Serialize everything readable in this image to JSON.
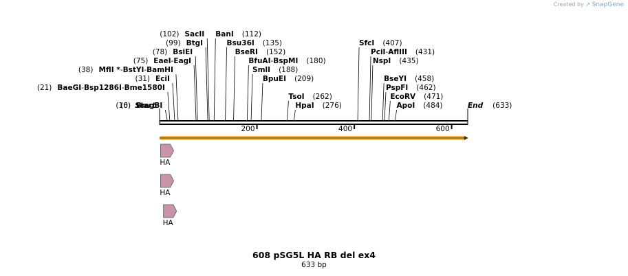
{
  "credit": {
    "prefix": "Created by",
    "brand": "SnapGene"
  },
  "sequence": {
    "name": "608 pSG5L HA RB del ex4",
    "length_label": "633 bp",
    "length": 633
  },
  "ends": {
    "start_label": "Start",
    "start_pos": "(0)",
    "end_label": "End",
    "end_pos": "(633)"
  },
  "ruler_ticks": [
    {
      "pos": 200,
      "label": "200"
    },
    {
      "pos": 400,
      "label": "400"
    },
    {
      "pos": 600,
      "label": "600"
    }
  ],
  "left_sites": [
    {
      "pos": 16,
      "num": "(16)",
      "segments": [
        {
          "t": "BmgBI",
          "b": true
        }
      ]
    },
    {
      "pos": 21,
      "num": "(21)",
      "segments": [
        {
          "t": "BaeGI",
          "b": true
        },
        {
          "t": " - ",
          "b": false
        },
        {
          "t": "Bsp1286I",
          "b": true
        },
        {
          "t": " - ",
          "b": false
        },
        {
          "t": "Bme1580I",
          "b": true
        }
      ]
    },
    {
      "pos": 31,
      "num": "(31)",
      "segments": [
        {
          "t": "EciI",
          "b": true
        }
      ]
    },
    {
      "pos": 38,
      "num": "(38)",
      "segments": [
        {
          "t": "MflI *",
          "b": true
        },
        {
          "t": " - ",
          "b": false
        },
        {
          "t": "BstYI",
          "b": true
        },
        {
          "t": " - ",
          "b": false
        },
        {
          "t": "BamHI",
          "b": true
        }
      ]
    },
    {
      "pos": 75,
      "num": "(75)",
      "segments": [
        {
          "t": "EaeI",
          "b": true
        },
        {
          "t": " - ",
          "b": false
        },
        {
          "t": "EagI",
          "b": true
        }
      ]
    },
    {
      "pos": 78,
      "num": "(78)",
      "segments": [
        {
          "t": "BsiEI",
          "b": true
        }
      ]
    },
    {
      "pos": 99,
      "num": "(99)",
      "segments": [
        {
          "t": "BtgI",
          "b": true
        }
      ]
    },
    {
      "pos": 102,
      "num": "(102)",
      "segments": [
        {
          "t": "SacII",
          "b": true
        }
      ]
    }
  ],
  "right_sites": [
    {
      "pos": 112,
      "num": "(112)",
      "segments": [
        {
          "t": "BanI",
          "b": true
        }
      ]
    },
    {
      "pos": 135,
      "num": "(135)",
      "segments": [
        {
          "t": "Bsu36I",
          "b": true
        }
      ]
    },
    {
      "pos": 152,
      "num": "(152)",
      "segments": [
        {
          "t": "BseRI",
          "b": true
        }
      ]
    },
    {
      "pos": 180,
      "num": "(180)",
      "segments": [
        {
          "t": "BfuAI",
          "b": true
        },
        {
          "t": " - ",
          "b": false
        },
        {
          "t": "BspMI",
          "b": true
        }
      ]
    },
    {
      "pos": 188,
      "num": "(188)",
      "segments": [
        {
          "t": "SmlI",
          "b": true
        }
      ]
    },
    {
      "pos": 209,
      "num": "(209)",
      "segments": [
        {
          "t": "BpuEI",
          "b": true
        }
      ]
    },
    {
      "pos": 262,
      "num": "(262)",
      "segments": [
        {
          "t": "TsoI",
          "b": true
        }
      ]
    },
    {
      "pos": 276,
      "num": "(276)",
      "segments": [
        {
          "t": "HpaI",
          "b": true
        }
      ]
    },
    {
      "pos": 407,
      "num": "(407)",
      "segments": [
        {
          "t": "SfcI",
          "b": true
        }
      ]
    },
    {
      "pos": 431,
      "num": "(431)",
      "segments": [
        {
          "t": "PciI",
          "b": true
        },
        {
          "t": " - ",
          "b": false
        },
        {
          "t": "AflIII",
          "b": true
        }
      ]
    },
    {
      "pos": 435,
      "num": "(435)",
      "segments": [
        {
          "t": "NspI",
          "b": true
        }
      ]
    },
    {
      "pos": 458,
      "num": "(458)",
      "segments": [
        {
          "t": "BseYI",
          "b": true
        }
      ]
    },
    {
      "pos": 462,
      "num": "(462)",
      "segments": [
        {
          "t": "PspFI",
          "b": true
        }
      ]
    },
    {
      "pos": 471,
      "num": "(471)",
      "segments": [
        {
          "t": "EcoRV",
          "b": true
        }
      ]
    },
    {
      "pos": 484,
      "num": "(484)",
      "segments": [
        {
          "t": "ApoI",
          "b": true
        }
      ]
    }
  ],
  "orf": {
    "start": 0,
    "end": 627,
    "color": "#f5b83a"
  },
  "features": [
    {
      "label": "HA",
      "start": 2,
      "end": 29,
      "color": "#c994aa"
    },
    {
      "label": "HA",
      "start": 2,
      "end": 29,
      "color": "#c994aa"
    },
    {
      "label": "HA",
      "start": 8,
      "end": 35,
      "color": "#c994aa"
    }
  ]
}
